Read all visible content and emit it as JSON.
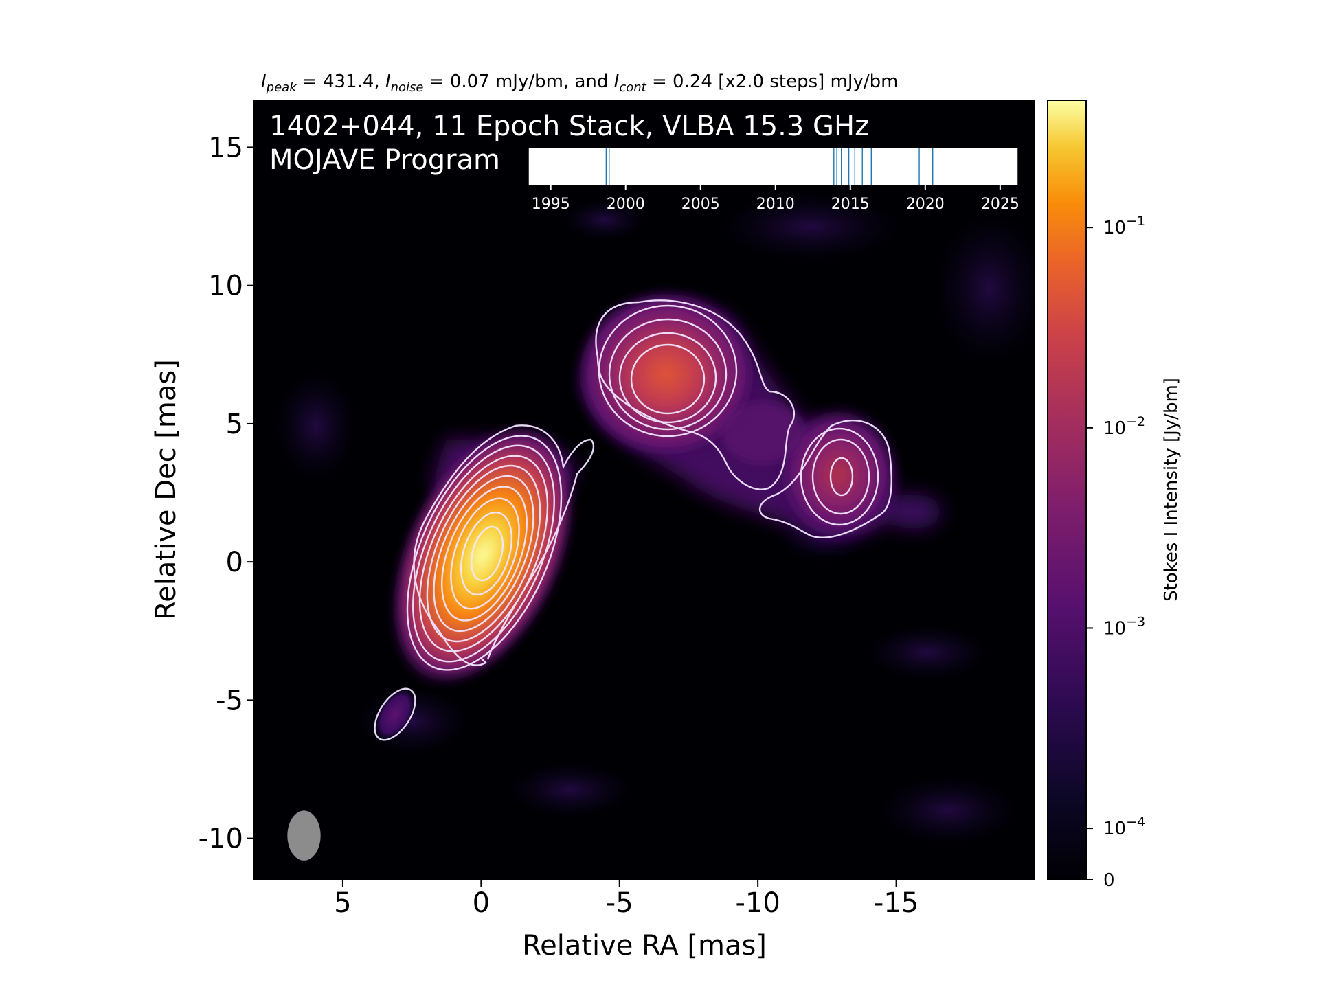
{
  "chart_data": {
    "type": "heatmap",
    "header": {
      "peak_value": "431.4",
      "noise_value": "0.07 mJy/bm",
      "cont_value": "0.24",
      "steps": "[x2.0 steps] mJy/bm",
      "joiner": "and"
    },
    "title_line1": "1402+044, 11 Epoch Stack, VLBA 15.3 GHz",
    "title_line2": "MOJAVE Program",
    "xlabel": "Relative RA [mas]",
    "ylabel": "Relative Dec [mas]",
    "xlim": [
      8.2,
      -20
    ],
    "ylim": [
      -11.5,
      16.7
    ],
    "x_ticks": [
      5,
      0,
      -5,
      -10,
      -15
    ],
    "x_tick_labels": [
      "5",
      "0",
      "-5",
      "-10",
      "-15"
    ],
    "y_ticks": [
      15,
      10,
      5,
      0,
      -5,
      -10
    ],
    "y_tick_labels": [
      "15",
      "10",
      "5",
      "0",
      "-5",
      "-10"
    ],
    "colormap": "inferno",
    "colorbar": {
      "label": "Stokes I Intensity [Jy/bm]",
      "scale": "symlog",
      "range": [
        0,
        0.4314
      ],
      "ticks": [
        {
          "value": 0.1,
          "label_base": "10",
          "label_exp": "−1"
        },
        {
          "value": 0.01,
          "label_base": "10",
          "label_exp": "−2"
        },
        {
          "value": 0.001,
          "label_base": "10",
          "label_exp": "−3"
        },
        {
          "value": 0.0001,
          "label_base": "10",
          "label_exp": "−4"
        },
        {
          "value": 0,
          "label_base": "0",
          "label_exp": ""
        }
      ]
    },
    "components": [
      {
        "ra": 0.0,
        "dec": 0.0,
        "peak_jy": 0.4314
      },
      {
        "ra": -6.8,
        "dec": 6.4,
        "peak_jy": 0.012
      },
      {
        "ra": -13.0,
        "dec": 2.9,
        "peak_jy": 0.0025
      },
      {
        "ra": 3.5,
        "dec": -5.8,
        "peak_jy": 0.0003
      }
    ],
    "beam": {
      "ra": 6.4,
      "dec": -9.9,
      "major_mas": 1.8,
      "minor_mas": 1.2,
      "pa_deg": 0
    },
    "epoch_inset": {
      "xlim": [
        1993.5,
        2026.2
      ],
      "ticks": [
        1995,
        2000,
        2005,
        2010,
        2015,
        2020,
        2025
      ],
      "tick_labels": [
        "1995",
        "2000",
        "2005",
        "2010",
        "2015",
        "2020",
        "2025"
      ],
      "epochs": [
        1998.7,
        1998.9,
        2013.9,
        2014.1,
        2014.4,
        2014.9,
        2015.3,
        2015.8,
        2016.4,
        2019.6,
        2020.5
      ]
    },
    "colors": {
      "contour": "#ffffff",
      "background": "#000004",
      "epoch_line": "#1f77b4",
      "beam": "#8c8c8c"
    }
  }
}
